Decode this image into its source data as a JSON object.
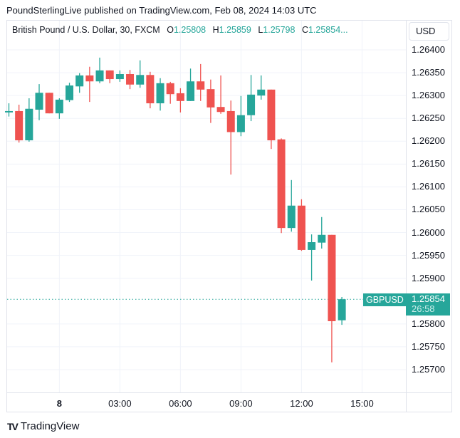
{
  "header": {
    "published": "PoundSterlingLive published on TradingView.com, Feb 08, 2024 14:03 UTC"
  },
  "legend": {
    "title": "British Pound / U.S. Dollar, 30, FXCM",
    "o_label": "O",
    "o": "1.25808",
    "h_label": "H",
    "h": "1.25859",
    "l_label": "L",
    "l": "1.25798",
    "c_label": "C",
    "c": "1.25854..."
  },
  "currency_button": "USD",
  "symbol_tag": "GBPUSD",
  "current_price": "1.25854",
  "countdown": "26:58",
  "footer": {
    "brand": "TradingView"
  },
  "colors": {
    "up": "#26a69a",
    "down": "#ef5350",
    "grid": "#f0f3fa"
  },
  "chart_data": {
    "type": "candlestick",
    "interval": "30 min",
    "x_ticks": [
      {
        "label": "8",
        "index": 5,
        "bold": true
      },
      {
        "label": "03:00",
        "index": 11
      },
      {
        "label": "06:00",
        "index": 17
      },
      {
        "label": "09:00",
        "index": 23
      },
      {
        "label": "12:00",
        "index": 29
      },
      {
        "label": "15:00",
        "index": 35
      }
    ],
    "y_ticks": [
      "1.26400",
      "1.26350",
      "1.26300",
      "1.26250",
      "1.26200",
      "1.26150",
      "1.26100",
      "1.26050",
      "1.26000",
      "1.25950",
      "1.25900",
      "1.25800",
      "1.25750",
      "1.25700"
    ],
    "ylim": [
      1.25652,
      1.26436
    ],
    "last_price": 1.25854,
    "candles": [
      [
        1.26263,
        1.26283,
        1.26254,
        1.26266
      ],
      [
        1.26266,
        1.2628,
        1.26197,
        1.26202
      ],
      [
        1.26202,
        1.26294,
        1.26199,
        1.26271
      ],
      [
        1.26269,
        1.26325,
        1.26246,
        1.26306
      ],
      [
        1.26306,
        1.26306,
        1.26261,
        1.26261
      ],
      [
        1.26261,
        1.26294,
        1.26249,
        1.26291
      ],
      [
        1.2629,
        1.26328,
        1.26286,
        1.26322
      ],
      [
        1.2632,
        1.26349,
        1.26306,
        1.26344
      ],
      [
        1.26344,
        1.26363,
        1.26286,
        1.26331
      ],
      [
        1.26331,
        1.26383,
        1.26327,
        1.26355
      ],
      [
        1.26355,
        1.26355,
        1.26327,
        1.26336
      ],
      [
        1.26336,
        1.26355,
        1.2633,
        1.26347
      ],
      [
        1.26347,
        1.26356,
        1.26314,
        1.26324
      ],
      [
        1.26324,
        1.26377,
        1.26317,
        1.26345
      ],
      [
        1.26345,
        1.26352,
        1.26272,
        1.26283
      ],
      [
        1.26283,
        1.26338,
        1.26267,
        1.26327
      ],
      [
        1.26327,
        1.2633,
        1.26282,
        1.26303
      ],
      [
        1.26305,
        1.26316,
        1.26263,
        1.26288
      ],
      [
        1.26288,
        1.26359,
        1.26288,
        1.26331
      ],
      [
        1.26331,
        1.26369,
        1.26288,
        1.26313
      ],
      [
        1.26314,
        1.26335,
        1.2624,
        1.26274
      ],
      [
        1.26275,
        1.26344,
        1.2626,
        1.26264
      ],
      [
        1.26266,
        1.26289,
        1.26127,
        1.2622
      ],
      [
        1.2622,
        1.26299,
        1.26211,
        1.26257
      ],
      [
        1.26257,
        1.26345,
        1.26244,
        1.26302
      ],
      [
        1.263,
        1.26344,
        1.26291,
        1.26313
      ],
      [
        1.26313,
        1.26313,
        1.26183,
        1.26202
      ],
      [
        1.26204,
        1.26206,
        1.25999,
        1.2601
      ],
      [
        1.2601,
        1.26115,
        1.26002,
        1.26059
      ],
      [
        1.26059,
        1.26073,
        1.2596,
        1.25962
      ],
      [
        1.25962,
        1.25996,
        1.25895,
        1.25979
      ],
      [
        1.25978,
        1.26034,
        1.25965,
        1.25995
      ],
      [
        1.25995,
        1.25995,
        1.25716,
        1.25806
      ],
      [
        1.25808,
        1.25859,
        1.25798,
        1.25854
      ]
    ]
  }
}
